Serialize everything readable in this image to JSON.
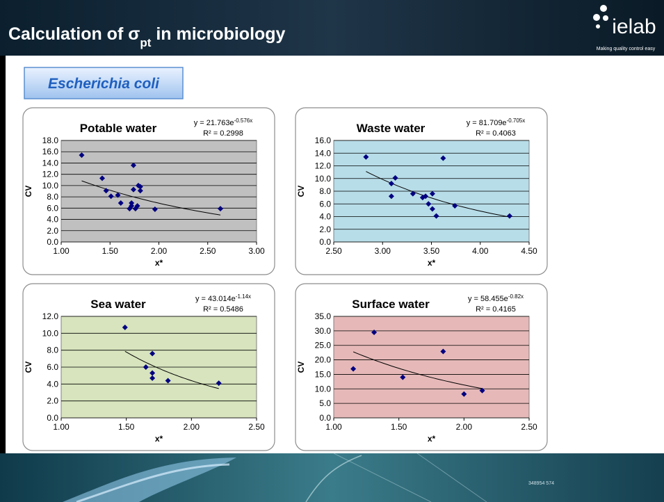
{
  "header": {
    "title_prefix": "Calculation of σ",
    "title_subscript": "pt",
    "title_suffix": " in microbiology",
    "logo": "ielab",
    "logo_tagline": "Making quality control easy"
  },
  "subtitle": "Escherichia coli",
  "footer": {
    "code": "348954 574"
  },
  "chart_data": [
    {
      "type": "scatter",
      "title": "Potable water",
      "equation_base": "y = 21.763e",
      "equation_exponent": "-0.576x",
      "r_squared": "R² = 0.2998",
      "x_label": "x*",
      "y_label": "CV",
      "background": "#c0c0c0",
      "color": "#000080",
      "grid": true,
      "trendline": {
        "a": 21.763,
        "b": -0.576
      },
      "x": [
        1.21,
        1.42,
        1.46,
        1.51,
        1.58,
        1.61,
        1.7,
        1.72,
        1.72,
        1.74,
        1.74,
        1.76,
        1.78,
        1.79,
        1.81,
        1.81,
        1.96,
        2.63
      ],
      "values": [
        15.4,
        11.3,
        9.1,
        8.1,
        8.3,
        6.9,
        5.9,
        6.9,
        6.4,
        13.6,
        9.3,
        5.9,
        6.4,
        10.0,
        9.1,
        9.8,
        5.8,
        5.9
      ],
      "xlim": [
        1,
        3
      ],
      "xticks": [
        {
          "value": 1,
          "label": "1.00"
        },
        {
          "value": 1.5,
          "label": "1.50"
        },
        {
          "value": 2,
          "label": "2.00"
        },
        {
          "value": 2.5,
          "label": "2.50"
        },
        {
          "value": 3,
          "label": "3.00"
        }
      ],
      "ylim": [
        0,
        18
      ],
      "yticks": [
        {
          "value": 0,
          "label": "0.0"
        },
        {
          "value": 2,
          "label": "2.0"
        },
        {
          "value": 4,
          "label": "4.0"
        },
        {
          "value": 6,
          "label": "6.0"
        },
        {
          "value": 8,
          "label": "8.0"
        },
        {
          "value": 10,
          "label": "10.0"
        },
        {
          "value": 12,
          "label": "12.0"
        },
        {
          "value": 14,
          "label": "14.0"
        },
        {
          "value": 16,
          "label": "16.0"
        },
        {
          "value": 18,
          "label": "18.0"
        }
      ]
    },
    {
      "type": "scatter",
      "title": "Waste water",
      "equation_base": "y = 81.709e",
      "equation_exponent": "-0.705x",
      "r_squared": "R² = 0.4063",
      "x_label": "x*",
      "y_label": "CV",
      "background": "#b7dde8",
      "color": "#000080",
      "grid": true,
      "trendline": {
        "a": 81.709,
        "b": -0.705
      },
      "x": [
        2.83,
        3.09,
        3.09,
        3.13,
        3.31,
        3.41,
        3.44,
        3.47,
        3.51,
        3.51,
        3.55,
        3.62,
        3.74,
        4.3
      ],
      "values": [
        13.4,
        9.2,
        7.2,
        10.1,
        7.6,
        7.0,
        7.2,
        6.0,
        5.2,
        7.6,
        4.1,
        13.2,
        5.7,
        4.1
      ],
      "xlim": [
        2.5,
        4.5
      ],
      "xticks": [
        {
          "value": 2.5,
          "label": "2.50"
        },
        {
          "value": 3,
          "label": "3.00"
        },
        {
          "value": 3.5,
          "label": "3.50"
        },
        {
          "value": 4,
          "label": "4.00"
        },
        {
          "value": 4.5,
          "label": "4.50"
        }
      ],
      "ylim": [
        0,
        16
      ],
      "yticks": [
        {
          "value": 0,
          "label": "0.0"
        },
        {
          "value": 2,
          "label": "2.0"
        },
        {
          "value": 4,
          "label": "4.0"
        },
        {
          "value": 6,
          "label": "6.0"
        },
        {
          "value": 8,
          "label": "8.0"
        },
        {
          "value": 10,
          "label": "10.0"
        },
        {
          "value": 12,
          "label": "12.0"
        },
        {
          "value": 14,
          "label": "14.0"
        },
        {
          "value": 16,
          "label": "16.0"
        }
      ]
    },
    {
      "type": "scatter",
      "title": "Sea water",
      "equation_base": "y = 43.014e",
      "equation_exponent": "-1.14x",
      "r_squared": "R² = 0.5486",
      "x_label": "x*",
      "y_label": "CV",
      "background": "#d7e4bd",
      "color": "#000080",
      "grid": true,
      "trendline": {
        "a": 43.014,
        "b": -1.14
      },
      "x": [
        1.49,
        1.65,
        1.7,
        1.7,
        1.7,
        1.82,
        2.21
      ],
      "values": [
        10.7,
        6.0,
        7.6,
        5.3,
        4.7,
        4.4,
        4.1
      ],
      "xlim": [
        1,
        2.5
      ],
      "xticks": [
        {
          "value": 1,
          "label": "1.00"
        },
        {
          "value": 1.5,
          "label": "1.50"
        },
        {
          "value": 2,
          "label": "2.00"
        },
        {
          "value": 2.5,
          "label": "2.50"
        }
      ],
      "ylim": [
        0,
        12
      ],
      "yticks": [
        {
          "value": 0,
          "label": "0.0"
        },
        {
          "value": 2,
          "label": "2.0"
        },
        {
          "value": 4,
          "label": "4.0"
        },
        {
          "value": 6,
          "label": "6.0"
        },
        {
          "value": 8,
          "label": "8.0"
        },
        {
          "value": 10,
          "label": "10.0"
        },
        {
          "value": 12,
          "label": "12.0"
        }
      ]
    },
    {
      "type": "scatter",
      "title": "Surface water",
      "equation_base": "y = 58.455e",
      "equation_exponent": "-0.82x",
      "r_squared": "R² = 0.4165",
      "x_label": "x*",
      "y_label": "CV",
      "background": "#e6b9b8",
      "color": "#000080",
      "grid": true,
      "trendline": {
        "a": 58.455,
        "b": -0.82
      },
      "x": [
        1.15,
        1.31,
        1.53,
        1.84,
        2.0,
        2.14
      ],
      "values": [
        16.9,
        29.5,
        14.0,
        22.9,
        8.2,
        9.4
      ],
      "xlim": [
        1,
        2.5
      ],
      "xticks": [
        {
          "value": 1,
          "label": "1.00"
        },
        {
          "value": 1.5,
          "label": "1.50"
        },
        {
          "value": 2,
          "label": "2.00"
        },
        {
          "value": 2.5,
          "label": "2.50"
        }
      ],
      "ylim": [
        0,
        35
      ],
      "yticks": [
        {
          "value": 0,
          "label": "0.0"
        },
        {
          "value": 5,
          "label": "5.0"
        },
        {
          "value": 10,
          "label": "10.0"
        },
        {
          "value": 15,
          "label": "15.0"
        },
        {
          "value": 20,
          "label": "20.0"
        },
        {
          "value": 25,
          "label": "25.0"
        },
        {
          "value": 30,
          "label": "30.0"
        },
        {
          "value": 35,
          "label": "35.0"
        }
      ]
    }
  ]
}
